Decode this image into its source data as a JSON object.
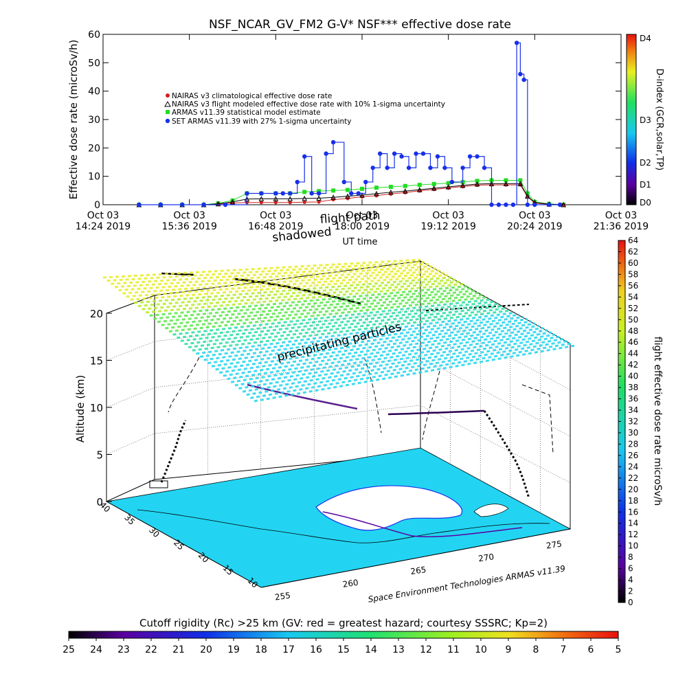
{
  "title": "NSF_NCAR_GV_FM2 G-V* NSF*** effective dose rate",
  "top_chart": {
    "ylabel": "Effective dose rate (microSv/h)",
    "xlabel": "UT time",
    "yticks": [
      "0",
      "10",
      "20",
      "30",
      "40",
      "50",
      "60"
    ],
    "xticks": [
      {
        "date": "Oct 03",
        "time": "14:24 2019"
      },
      {
        "date": "Oct 03",
        "time": "15:36 2019"
      },
      {
        "date": "Oct 03",
        "time": "16:48 2019"
      },
      {
        "date": "Oct 03",
        "time": "18:00 2019"
      },
      {
        "date": "Oct 03",
        "time": "19:12 2019"
      },
      {
        "date": "Oct 03",
        "time": "20:24 2019"
      },
      {
        "date": "Oct 03",
        "time": "21:36 2019"
      }
    ],
    "legend": [
      "NAIRAS v3 climatological effective dose rate",
      "NAIRAS v3 flight modeled effective dose rate with 10% 1-sigma uncertainty",
      "ARMAS v11.39 statistical model estimate",
      "SET ARMAS v11.39 with 27% 1-sigma uncertainty"
    ],
    "dindex_label": "D-index (GCR,solar,TP)",
    "dindex_ticks": [
      "D4",
      "D3",
      "D2",
      "D1",
      "D0"
    ]
  },
  "overlay_labels": {
    "flight_path": "flight path",
    "shadowed": "shadowed",
    "precipitating": "precipitating particles"
  },
  "bottom_chart": {
    "zlabel": "Altitude (km)",
    "zticks": [
      "0",
      "5",
      "10",
      "15",
      "20"
    ],
    "lat_ticks": [
      "40",
      "35",
      "30",
      "25",
      "20",
      "15",
      "10"
    ],
    "lon_ticks": [
      "255",
      "260",
      "265",
      "270",
      "275"
    ],
    "credit": "Space Environment Technologies ARMAS v11.39",
    "dose_colorbar_label": "flight effective dose rate microSv/h",
    "dose_ticks": [
      "0",
      "2",
      "4",
      "6",
      "8",
      "10",
      "12",
      "14",
      "16",
      "18",
      "20",
      "22",
      "24",
      "26",
      "28",
      "30",
      "32",
      "34",
      "36",
      "38",
      "40",
      "42",
      "44",
      "46",
      "48",
      "50",
      "52",
      "54",
      "56",
      "58",
      "60",
      "62",
      "64"
    ]
  },
  "cutoff_bar": {
    "label": "Cutoff rigidity (Rc) >25 km (GV: red = greatest hazard; courtesy SSSRC; Kp=2)",
    "ticks": [
      "25",
      "24",
      "23",
      "22",
      "21",
      "20",
      "19",
      "18",
      "17",
      "16",
      "15",
      "14",
      "13",
      "12",
      "11",
      "10",
      "9",
      "8",
      "7",
      "6",
      "5"
    ]
  },
  "colors": {
    "nairas_clim": "#d02020",
    "nairas_flight": "#000000",
    "armas_model": "#22dd22",
    "set_armas": "#1830e8",
    "dose_high": "#ee1111",
    "dose_low": "#000000",
    "ocean": "#22d4f2",
    "land": "#ffffff"
  },
  "chart_data": [
    {
      "type": "scatter",
      "title": "NSF_NCAR_GV_FM2 G-V* NSF*** effective dose rate",
      "xlabel": "UT time",
      "ylabel": "Effective dose rate (microSv/h)",
      "xlim": [
        "14:24",
        "21:36"
      ],
      "ylim": [
        0,
        60
      ],
      "x_unit": "UT hours (Oct 03 2019)",
      "series": [
        {
          "name": "SET ARMAS v11.39 with 27% 1-sigma uncertainty",
          "x": [
            14.9,
            15.2,
            15.5,
            15.8,
            16.1,
            16.4,
            16.6,
            16.8,
            16.9,
            17.0,
            17.1,
            17.2,
            17.3,
            17.4,
            17.5,
            17.6,
            17.75,
            17.85,
            17.95,
            18.05,
            18.15,
            18.25,
            18.35,
            18.45,
            18.55,
            18.65,
            18.75,
            18.85,
            18.95,
            19.05,
            19.15,
            19.25,
            19.4,
            19.5,
            19.6,
            19.7,
            19.8,
            19.9,
            20.0,
            20.1,
            20.15,
            20.2,
            20.25,
            20.3,
            20.4,
            20.6,
            20.75
          ],
          "y": [
            0,
            0,
            0,
            0,
            0,
            4,
            4,
            4,
            4,
            4,
            8,
            17,
            4,
            4,
            18,
            22,
            8,
            4,
            4,
            8,
            13,
            18,
            13,
            18,
            17,
            13,
            18,
            18,
            13,
            17,
            13,
            8,
            13,
            17,
            17,
            13,
            0,
            0,
            0,
            0,
            57,
            46,
            44,
            0,
            0,
            0,
            0
          ]
        },
        {
          "name": "ARMAS v11.39 statistical model estimate",
          "x": [
            14.9,
            15.2,
            15.5,
            15.8,
            16.0,
            16.2,
            16.4,
            16.6,
            16.8,
            17.0,
            17.2,
            17.4,
            17.6,
            17.8,
            18.0,
            18.2,
            18.4,
            18.6,
            18.8,
            19.0,
            19.2,
            19.4,
            19.6,
            19.8,
            20.0,
            20.2,
            20.3,
            20.4,
            20.6,
            20.8
          ],
          "y": [
            0,
            0,
            0,
            0,
            0.5,
            1.5,
            4,
            4,
            4,
            4,
            4.5,
            4.8,
            5,
            5.2,
            5.6,
            6,
            6.3,
            6.6,
            7,
            7.3,
            7.6,
            8,
            8.4,
            8.6,
            8.6,
            8.6,
            4,
            1,
            0.3,
            0
          ]
        },
        {
          "name": "NAIRAS v3 flight modeled effective dose rate with 10% 1-sigma uncertainty",
          "x": [
            14.9,
            15.2,
            15.5,
            15.8,
            16.0,
            16.2,
            16.4,
            16.6,
            16.8,
            17.0,
            17.2,
            17.4,
            17.6,
            17.8,
            18.0,
            18.2,
            18.4,
            18.6,
            18.8,
            19.0,
            19.2,
            19.4,
            19.6,
            19.8,
            20.0,
            20.2,
            20.3,
            20.4,
            20.6,
            20.8
          ],
          "y": [
            0,
            0,
            0,
            0,
            0.3,
            1,
            2,
            2.1,
            2.1,
            2.1,
            2.2,
            2.3,
            2.6,
            3,
            3.4,
            3.9,
            4.4,
            4.8,
            5.3,
            5.8,
            6.3,
            6.8,
            7.3,
            7.4,
            7.4,
            7.4,
            3,
            0.8,
            0.2,
            0
          ]
        },
        {
          "name": "NAIRAS v3 climatological effective dose rate",
          "x": [
            14.9,
            15.2,
            15.5,
            15.8,
            16.0,
            16.2,
            16.4,
            16.6,
            16.8,
            17.0,
            17.2,
            17.4,
            17.6,
            17.8,
            18.0,
            18.2,
            18.4,
            18.6,
            18.8,
            19.0,
            19.2,
            19.4,
            19.6,
            19.8,
            20.0,
            20.2,
            20.3,
            20.4,
            20.6,
            20.8
          ],
          "y": [
            0,
            0,
            0,
            0,
            0.2,
            0.6,
            0.8,
            0.8,
            0.8,
            0.8,
            0.9,
            1,
            1.8,
            2.2,
            2.8,
            3.2,
            3.8,
            4.3,
            4.9,
            5.4,
            5.9,
            6.4,
            6.9,
            7,
            7,
            7,
            2.8,
            0.6,
            0.1,
            0
          ]
        }
      ]
    },
    {
      "type": "scatter",
      "xlabel": "",
      "ylabel": "Altitude (km)",
      "zlim": [
        0,
        20
      ],
      "note_labels": [
        "flight path",
        "shadowed",
        "precipitating particles"
      ]
    }
  ]
}
